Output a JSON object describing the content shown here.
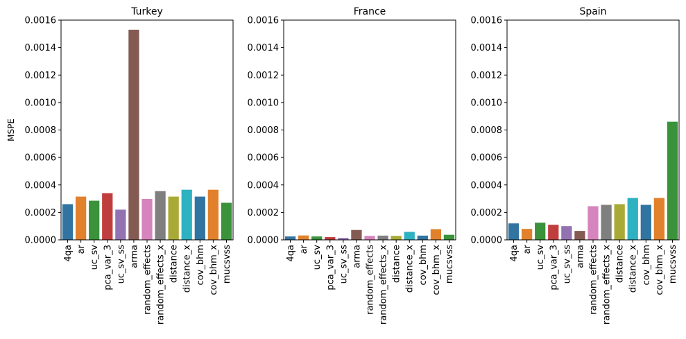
{
  "chart_data": [
    {
      "type": "bar",
      "title": "Turkey",
      "xlabel": "",
      "ylabel": "MSPE",
      "ylim": [
        0,
        0.0016
      ],
      "yticks": [
        "0.0000",
        "0.0002",
        "0.0004",
        "0.0006",
        "0.0008",
        "0.0010",
        "0.0012",
        "0.0014",
        "0.0016"
      ],
      "categories": [
        "4qa",
        "ar",
        "uc_sv",
        "pca_var_3",
        "uc_sv_ss",
        "arma",
        "random_effects",
        "random_effects_x",
        "distance",
        "distance_x",
        "cov_bhm",
        "cov_bhm_x",
        "mucsvss"
      ],
      "values": [
        0.00026,
        0.000315,
        0.000285,
        0.00034,
        0.00022,
        0.00153,
        0.000298,
        0.000355,
        0.000315,
        0.000365,
        0.000315,
        0.000365,
        0.00027
      ],
      "grid": false
    },
    {
      "type": "bar",
      "title": "France",
      "xlabel": "",
      "ylabel": "",
      "ylim": [
        0,
        0.0016
      ],
      "yticks": [
        "0.0000",
        "0.0002",
        "0.0004",
        "0.0006",
        "0.0008",
        "0.0010",
        "0.0012",
        "0.0014",
        "0.0016"
      ],
      "categories": [
        "4qa",
        "ar",
        "uc_sv",
        "pca_var_3",
        "uc_sv_ss",
        "arma",
        "random_effects",
        "random_effects_x",
        "distance",
        "distance_x",
        "cov_bhm",
        "cov_bhm_x",
        "mucsvss"
      ],
      "values": [
        2.5e-05,
        3.2e-05,
        2.5e-05,
        2e-05,
        1.4e-05,
        7.2e-05,
        2.9e-05,
        3.1e-05,
        2.9e-05,
        5.8e-05,
        3.1e-05,
        7.8e-05,
        3.7e-05
      ],
      "grid": false
    },
    {
      "type": "bar",
      "title": "Spain",
      "xlabel": "",
      "ylabel": "",
      "ylim": [
        0,
        0.0016
      ],
      "yticks": [
        "0.0000",
        "0.0002",
        "0.0004",
        "0.0006",
        "0.0008",
        "0.0010",
        "0.0012",
        "0.0014",
        "0.0016"
      ],
      "categories": [
        "4qa",
        "ar",
        "uc_sv",
        "pca_var_3",
        "uc_sv_ss",
        "arma",
        "random_effects",
        "random_effects_x",
        "distance",
        "distance_x",
        "cov_bhm",
        "cov_bhm_x",
        "mucsvss"
      ],
      "values": [
        0.00012,
        8e-05,
        0.000125,
        0.00011,
        0.0001,
        6.5e-05,
        0.000245,
        0.000255,
        0.00026,
        0.000305,
        0.000255,
        0.000305,
        0.00086
      ],
      "grid": false
    }
  ],
  "bar_colors": [
    "#3274a1",
    "#e1812c",
    "#3a923a",
    "#c03d3e",
    "#9372b2",
    "#845b53",
    "#d684bd",
    "#7f7f7f",
    "#a9aa35",
    "#2eb1c1",
    "#3274a1",
    "#e1812c",
    "#3a923a"
  ]
}
